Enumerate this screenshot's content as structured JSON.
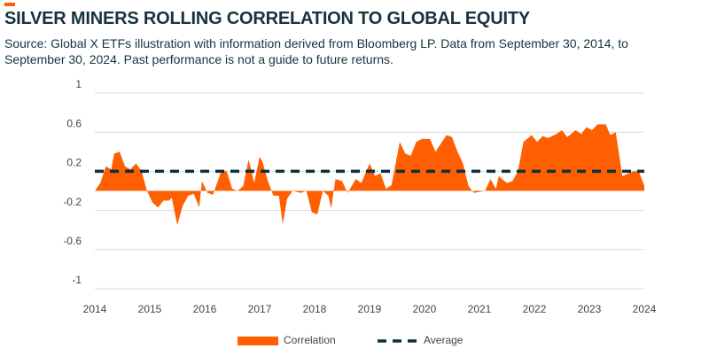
{
  "chart_data": {
    "type": "area",
    "title": "SILVER MINERS ROLLING CORRELATION TO GLOBAL EQUITY",
    "subtitle": "Source: Global X ETFs illustration with information derived from Bloomberg LP. Data from September 30, 2014, to September 30, 2024. Past performance is not a guide to future returns.",
    "xlim": [
      2014,
      2024
    ],
    "xticks": [
      2014,
      2015,
      2016,
      2017,
      2018,
      2019,
      2020,
      2021,
      2022,
      2023,
      2024
    ],
    "ylim": [
      -1,
      1
    ],
    "yticks": [
      1,
      0.6,
      0.2,
      -0.2,
      -0.6,
      -1
    ],
    "grid": true,
    "series": [
      {
        "name": "Correlation",
        "color": "#ff5f00",
        "type": "area",
        "x": [
          2014.0,
          2014.1,
          2014.2,
          2014.3,
          2014.35,
          2014.45,
          2014.55,
          2014.65,
          2014.75,
          2014.85,
          2014.95,
          2015.05,
          2015.15,
          2015.25,
          2015.35,
          2015.4,
          2015.5,
          2015.6,
          2015.7,
          2015.8,
          2015.9,
          2015.95,
          2016.05,
          2016.15,
          2016.3,
          2016.4,
          2016.5,
          2016.6,
          2016.7,
          2016.8,
          2016.9,
          2017.0,
          2017.05,
          2017.15,
          2017.25,
          2017.35,
          2017.42,
          2017.5,
          2017.6,
          2017.75,
          2017.85,
          2017.95,
          2018.05,
          2018.15,
          2018.25,
          2018.3,
          2018.38,
          2018.5,
          2018.6,
          2018.75,
          2018.85,
          2019.0,
          2019.1,
          2019.2,
          2019.3,
          2019.4,
          2019.55,
          2019.65,
          2019.75,
          2019.85,
          2019.95,
          2020.1,
          2020.2,
          2020.4,
          2020.5,
          2020.6,
          2020.7,
          2020.8,
          2020.9,
          2021.0,
          2021.1,
          2021.2,
          2021.3,
          2021.35,
          2021.5,
          2021.6,
          2021.7,
          2021.8,
          2021.95,
          2022.05,
          2022.15,
          2022.25,
          2022.4,
          2022.5,
          2022.6,
          2022.75,
          2022.85,
          2022.95,
          2023.05,
          2023.15,
          2023.3,
          2023.38,
          2023.48,
          2023.6,
          2023.8,
          2023.9,
          2024.0
        ],
        "values": [
          0.0,
          0.08,
          0.25,
          0.22,
          0.38,
          0.4,
          0.25,
          0.22,
          0.28,
          0.2,
          0.0,
          -0.12,
          -0.17,
          -0.1,
          -0.1,
          -0.07,
          -0.35,
          -0.15,
          -0.05,
          -0.03,
          -0.17,
          0.1,
          -0.02,
          -0.04,
          0.2,
          0.2,
          0.02,
          0.0,
          0.05,
          0.32,
          0.08,
          0.35,
          0.3,
          0.1,
          -0.05,
          -0.05,
          -0.34,
          -0.08,
          0.0,
          -0.02,
          0.0,
          -0.22,
          -0.24,
          0.0,
          -0.05,
          -0.18,
          0.12,
          0.1,
          -0.02,
          0.12,
          0.08,
          0.28,
          0.15,
          0.18,
          0.02,
          0.06,
          0.5,
          0.38,
          0.36,
          0.5,
          0.53,
          0.53,
          0.4,
          0.57,
          0.55,
          0.4,
          0.28,
          0.05,
          -0.02,
          -0.01,
          0.0,
          0.12,
          0.02,
          0.15,
          0.08,
          0.1,
          0.2,
          0.5,
          0.57,
          0.5,
          0.56,
          0.54,
          0.58,
          0.62,
          0.55,
          0.62,
          0.58,
          0.65,
          0.62,
          0.68,
          0.68,
          0.57,
          0.6,
          0.15,
          0.2,
          0.2,
          0.05
        ]
      },
      {
        "name": "Average",
        "color": "#0f2f3a",
        "type": "line",
        "dashed": true,
        "x": [
          2014,
          2024
        ],
        "values": [
          0.2,
          0.2
        ]
      }
    ]
  }
}
